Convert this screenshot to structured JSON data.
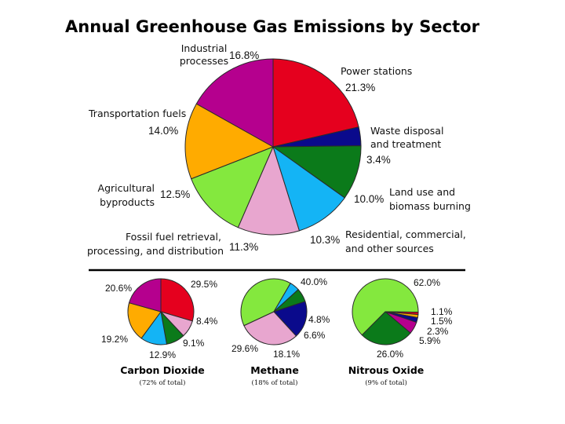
{
  "chart_data": [
    {
      "type": "pie",
      "title": "Annual Greenhouse Gas Emissions by Sector",
      "slices": [
        {
          "label": "Power stations",
          "value": 21.3,
          "value_label": "21.3%",
          "color": "#e5001e"
        },
        {
          "label": "Waste disposal and treatment",
          "value": 3.4,
          "value_label": "3.4%",
          "color": "#0a0a8c"
        },
        {
          "label": "Land use and biomass burning",
          "value": 10.0,
          "value_label": "10.0%",
          "color": "#0b7a1a"
        },
        {
          "label": "Residential, commercial, and other sources",
          "value": 10.3,
          "value_label": "10.3%",
          "color": "#14b4f5"
        },
        {
          "label": "Fossil fuel retrieval, processing, and distribution",
          "value": 11.3,
          "value_label": "11.3%",
          "color": "#e8a6cf"
        },
        {
          "label": "Agricultural byproducts",
          "value": 12.5,
          "value_label": "12.5%",
          "color": "#84e83e"
        },
        {
          "label": "Transportation fuels",
          "value": 14.0,
          "value_label": "14.0%",
          "color": "#ffab00"
        },
        {
          "label": "Industrial processes",
          "value": 16.8,
          "value_label": "16.8%",
          "color": "#b5008e"
        }
      ]
    },
    {
      "type": "pie",
      "title": "Carbon Dioxide",
      "subtitle": "(72% of total)",
      "slices": [
        {
          "label": "Power stations",
          "value": 29.5,
          "value_label": "29.5%",
          "color": "#e5001e"
        },
        {
          "label": "Fossil fuel retrieval, processing, and distribution",
          "value": 8.4,
          "value_label": "8.4%",
          "color": "#e8a6cf"
        },
        {
          "label": "Land use and biomass burning",
          "value": 9.1,
          "value_label": "9.1%",
          "color": "#0b7a1a"
        },
        {
          "label": "Residential, commercial, and other sources",
          "value": 12.9,
          "value_label": "12.9%",
          "color": "#14b4f5"
        },
        {
          "label": "Transportation fuels",
          "value": 19.2,
          "value_label": "19.2%",
          "color": "#ffab00"
        },
        {
          "label": "Industrial processes",
          "value": 20.6,
          "value_label": "20.6%",
          "color": "#b5008e"
        }
      ]
    },
    {
      "type": "pie",
      "title": "Methane",
      "subtitle": "(18% of total)",
      "slices": [
        {
          "label": "Agricultural byproducts",
          "value": 40.0,
          "value_label": "40.0%",
          "color": "#84e83e"
        },
        {
          "label": "Residential, commercial, and other sources",
          "value": 4.8,
          "value_label": "4.8%",
          "color": "#14b4f5"
        },
        {
          "label": "Land use and biomass burning",
          "value": 6.6,
          "value_label": "6.6%",
          "color": "#0b7a1a"
        },
        {
          "label": "Waste disposal and treatment",
          "value": 18.1,
          "value_label": "18.1%",
          "color": "#0a0a8c"
        },
        {
          "label": "Fossil fuel retrieval, processing, and distribution",
          "value": 29.6,
          "value_label": "29.6%",
          "color": "#e8a6cf"
        }
      ]
    },
    {
      "type": "pie",
      "title": "Nitrous Oxide",
      "subtitle": "(9% of total)",
      "slices": [
        {
          "label": "Agricultural byproducts",
          "value": 62.0,
          "value_label": "62.0%",
          "color": "#84e83e"
        },
        {
          "label": "Power stations",
          "value": 1.1,
          "value_label": "1.1%",
          "color": "#e5001e"
        },
        {
          "label": "Transportation fuels",
          "value": 1.5,
          "value_label": "1.5%",
          "color": "#ffab00"
        },
        {
          "label": "Waste disposal and treatment",
          "value": 2.3,
          "value_label": "2.3%",
          "color": "#0a0a8c"
        },
        {
          "label": "Industrial processes",
          "value": 5.9,
          "value_label": "5.9%",
          "color": "#b5008e"
        },
        {
          "label": "Land use and biomass burning",
          "value": 26.0,
          "value_label": "26.0%",
          "color": "#0b7a1a"
        }
      ]
    }
  ],
  "figure": {
    "sector_labels": {
      "industrial": [
        "Industrial",
        "processes"
      ],
      "power": [
        "Power stations"
      ],
      "waste": [
        "Waste disposal",
        "and treatment"
      ],
      "land": [
        "Land use and",
        "biomass burning"
      ],
      "residential": [
        "Residential, commercial,",
        "and other sources"
      ],
      "fossil": [
        "Fossil fuel retrieval,",
        "processing, and distribution"
      ],
      "agricultural": [
        "Agricultural",
        "byproducts"
      ],
      "transport": [
        "Transportation fuels"
      ]
    }
  }
}
